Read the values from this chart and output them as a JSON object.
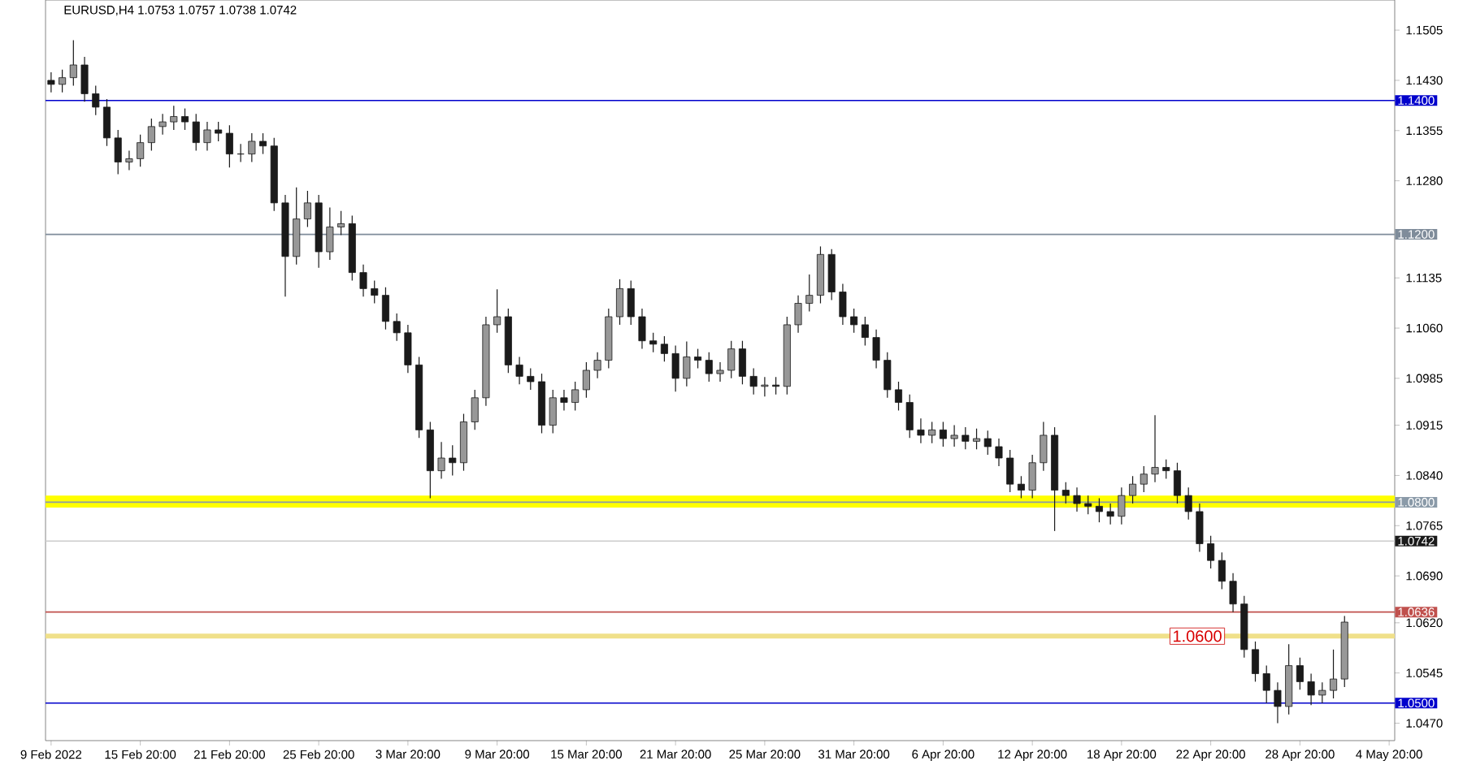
{
  "chart_data": {
    "type": "candlestick",
    "title": "EURUSD,H4  1.0753 1.0757 1.0738 1.0742",
    "color": "#1a1a1a",
    "categories": [
      "9 Feb 2022",
      null,
      null,
      null,
      null,
      null,
      null,
      null,
      "15 Feb 20:00",
      null,
      null,
      null,
      null,
      null,
      null,
      null,
      "21 Feb 20:00",
      null,
      null,
      null,
      null,
      null,
      null,
      null,
      "25 Feb 20:00",
      null,
      null,
      null,
      null,
      null,
      null,
      null,
      "3 Mar 20:00",
      null,
      null,
      null,
      null,
      null,
      null,
      null,
      "9 Mar 20:00",
      null,
      null,
      null,
      null,
      null,
      null,
      null,
      "15 Mar 20:00",
      null,
      null,
      null,
      null,
      null,
      null,
      null,
      "21 Mar 20:00",
      null,
      null,
      null,
      null,
      null,
      null,
      null,
      "25 Mar 20:00",
      null,
      null,
      null,
      null,
      null,
      null,
      null,
      "31 Mar 20:00",
      null,
      null,
      null,
      null,
      null,
      null,
      null,
      "6 Apr 20:00",
      null,
      null,
      null,
      null,
      null,
      null,
      null,
      "12 Apr 20:00",
      null,
      null,
      null,
      null,
      null,
      null,
      null,
      "18 Apr 20:00",
      null,
      null,
      null,
      null,
      null,
      null,
      null,
      "22 Apr 20:00",
      null,
      null,
      null,
      null,
      null,
      null,
      null,
      "28 Apr 20:00",
      null,
      null,
      null,
      null,
      null,
      null,
      null,
      "4 May 20:00"
    ],
    "ohlc": [
      [
        1.143,
        1.1442,
        1.1412,
        1.1424
      ],
      [
        1.1424,
        1.1446,
        1.1412,
        1.1434
      ],
      [
        1.1434,
        1.149,
        1.1422,
        1.1453
      ],
      [
        1.1453,
        1.1465,
        1.1398,
        1.141
      ],
      [
        1.141,
        1.1422,
        1.1378,
        1.139
      ],
      [
        1.139,
        1.1402,
        1.1332,
        1.1344
      ],
      [
        1.1344,
        1.1356,
        1.129,
        1.1308
      ],
      [
        1.1308,
        1.1325,
        1.1296,
        1.1313
      ],
      [
        1.1313,
        1.1349,
        1.1301,
        1.1337
      ],
      [
        1.1337,
        1.1373,
        1.1325,
        1.1361
      ],
      [
        1.1361,
        1.138,
        1.1349,
        1.1368
      ],
      [
        1.1368,
        1.1392,
        1.1356,
        1.1376
      ],
      [
        1.1376,
        1.1388,
        1.1356,
        1.1368
      ],
      [
        1.1368,
        1.138,
        1.1325,
        1.1337
      ],
      [
        1.1337,
        1.1368,
        1.1325,
        1.1356
      ],
      [
        1.1356,
        1.1368,
        1.1339,
        1.1351
      ],
      [
        1.1351,
        1.1363,
        1.13,
        1.132
      ],
      [
        1.132,
        1.1335,
        1.1308,
        1.132
      ],
      [
        1.132,
        1.1351,
        1.1308,
        1.1339
      ],
      [
        1.1339,
        1.1351,
        1.132,
        1.1332
      ],
      [
        1.1332,
        1.1344,
        1.1235,
        1.1247
      ],
      [
        1.1247,
        1.1259,
        1.1107,
        1.1167
      ],
      [
        1.1167,
        1.127,
        1.1155,
        1.1223
      ],
      [
        1.1223,
        1.1265,
        1.1211,
        1.1247
      ],
      [
        1.1247,
        1.1259,
        1.115,
        1.1174
      ],
      [
        1.1174,
        1.124,
        1.1162,
        1.1211
      ],
      [
        1.1211,
        1.1235,
        1.1199,
        1.1216
      ],
      [
        1.1216,
        1.1228,
        1.1131,
        1.1143
      ],
      [
        1.1143,
        1.1155,
        1.1107,
        1.1119
      ],
      [
        1.1119,
        1.1131,
        1.1097,
        1.1109
      ],
      [
        1.1109,
        1.1121,
        1.1058,
        1.107
      ],
      [
        1.107,
        1.1082,
        1.1041,
        1.1053
      ],
      [
        1.1053,
        1.1065,
        1.0993,
        1.1005
      ],
      [
        1.1005,
        1.1017,
        1.0896,
        1.0908
      ],
      [
        1.0908,
        1.092,
        1.0806,
        1.0847
      ],
      [
        1.0847,
        1.089,
        1.0835,
        1.0866
      ],
      [
        1.0866,
        1.0885,
        1.084,
        1.0859
      ],
      [
        1.0859,
        1.0932,
        1.0847,
        1.092
      ],
      [
        1.092,
        1.0968,
        1.0908,
        1.0956
      ],
      [
        1.0956,
        1.1077,
        1.0944,
        1.1065
      ],
      [
        1.1065,
        1.1118,
        1.1053,
        1.1077
      ],
      [
        1.1077,
        1.1089,
        1.0993,
        1.1005
      ],
      [
        1.1005,
        1.1017,
        1.0976,
        1.0988
      ],
      [
        1.0988,
        1.1,
        1.0968,
        1.098
      ],
      [
        1.098,
        1.0992,
        1.0903,
        1.0915
      ],
      [
        1.0915,
        1.0968,
        1.0903,
        1.0956
      ],
      [
        1.0956,
        1.0968,
        1.0937,
        1.0949
      ],
      [
        1.0949,
        1.098,
        1.0937,
        1.0968
      ],
      [
        1.0968,
        1.1009,
        1.0956,
        1.0997
      ],
      [
        1.0997,
        1.1024,
        1.0985,
        1.1012
      ],
      [
        1.1012,
        1.1089,
        1.1,
        1.1077
      ],
      [
        1.1077,
        1.1133,
        1.1065,
        1.1119
      ],
      [
        1.1119,
        1.1131,
        1.1065,
        1.1077
      ],
      [
        1.1077,
        1.1089,
        1.1029,
        1.1041
      ],
      [
        1.1041,
        1.1053,
        1.1024,
        1.1036
      ],
      [
        1.1036,
        1.1048,
        1.101,
        1.1022
      ],
      [
        1.1022,
        1.1034,
        1.0965,
        1.0985
      ],
      [
        1.0985,
        1.104,
        1.0973,
        1.1017
      ],
      [
        1.1017,
        1.1029,
        1.1,
        1.1012
      ],
      [
        1.1012,
        1.1024,
        1.098,
        1.0992
      ],
      [
        1.0992,
        1.1009,
        1.098,
        1.0997
      ],
      [
        1.0997,
        1.1041,
        1.0985,
        1.1029
      ],
      [
        1.1029,
        1.1041,
        1.0976,
        1.0988
      ],
      [
        1.0988,
        1.1,
        1.0961,
        1.0973
      ],
      [
        1.0973,
        1.0987,
        1.0958,
        1.0975
      ],
      [
        1.0975,
        1.0987,
        1.0961,
        1.0973
      ],
      [
        1.0973,
        1.1077,
        1.0961,
        1.1065
      ],
      [
        1.1065,
        1.1109,
        1.1053,
        1.1097
      ],
      [
        1.1097,
        1.114,
        1.1085,
        1.1109
      ],
      [
        1.1109,
        1.1182,
        1.1097,
        1.117
      ],
      [
        1.117,
        1.1178,
        1.1102,
        1.1114
      ],
      [
        1.1114,
        1.1126,
        1.1065,
        1.1077
      ],
      [
        1.1077,
        1.1089,
        1.1053,
        1.1065
      ],
      [
        1.1065,
        1.1077,
        1.1034,
        1.1046
      ],
      [
        1.1046,
        1.1058,
        1.1,
        1.1012
      ],
      [
        1.1012,
        1.1024,
        1.0956,
        1.0968
      ],
      [
        1.0968,
        1.098,
        1.0937,
        1.0949
      ],
      [
        1.0949,
        1.0961,
        1.0896,
        1.0908
      ],
      [
        1.0908,
        1.0925,
        1.0888,
        1.09
      ],
      [
        1.09,
        1.092,
        1.0888,
        1.0908
      ],
      [
        1.0908,
        1.092,
        1.0883,
        1.0895
      ],
      [
        1.0895,
        1.0915,
        1.0883,
        1.09
      ],
      [
        1.09,
        1.0912,
        1.0879,
        1.0891
      ],
      [
        1.0891,
        1.091,
        1.0879,
        1.0895
      ],
      [
        1.0895,
        1.0907,
        1.0871,
        1.0883
      ],
      [
        1.0883,
        1.0895,
        1.0854,
        1.0866
      ],
      [
        1.0866,
        1.0878,
        1.0815,
        1.0827
      ],
      [
        1.0827,
        1.0839,
        1.0806,
        1.0818
      ],
      [
        1.0818,
        1.0871,
        1.0806,
        1.0859
      ],
      [
        1.0859,
        1.092,
        1.0847,
        1.09
      ],
      [
        1.09,
        1.0912,
        1.0757,
        1.0818
      ],
      [
        1.0818,
        1.083,
        1.0798,
        1.081
      ],
      [
        1.081,
        1.0822,
        1.0786,
        1.0798
      ],
      [
        1.0798,
        1.081,
        1.0782,
        1.0794
      ],
      [
        1.0794,
        1.0806,
        1.077,
        1.0786
      ],
      [
        1.0786,
        1.0798,
        1.0767,
        1.0779
      ],
      [
        1.0779,
        1.0822,
        1.0767,
        1.081
      ],
      [
        1.081,
        1.0839,
        1.0798,
        1.0827
      ],
      [
        1.0827,
        1.0854,
        1.0815,
        1.0842
      ],
      [
        1.0842,
        1.093,
        1.083,
        1.0852
      ],
      [
        1.0852,
        1.0864,
        1.0835,
        1.0847
      ],
      [
        1.0847,
        1.0859,
        1.0798,
        1.081
      ],
      [
        1.081,
        1.0822,
        1.0774,
        1.0786
      ],
      [
        1.0786,
        1.0798,
        1.0726,
        1.0738
      ],
      [
        1.0738,
        1.075,
        1.0701,
        1.0713
      ],
      [
        1.0713,
        1.0725,
        1.067,
        1.0682
      ],
      [
        1.0682,
        1.0694,
        1.0636,
        1.0648
      ],
      [
        1.0648,
        1.066,
        1.0568,
        1.058
      ],
      [
        1.058,
        1.0592,
        1.0532,
        1.0544
      ],
      [
        1.0544,
        1.0556,
        1.05,
        1.0519
      ],
      [
        1.0519,
        1.0531,
        1.047,
        1.0495
      ],
      [
        1.0495,
        1.0588,
        1.0483,
        1.0556
      ],
      [
        1.0556,
        1.0568,
        1.052,
        1.0532
      ],
      [
        1.0532,
        1.0544,
        1.0497,
        1.0512
      ],
      [
        1.0512,
        1.0531,
        1.05,
        1.0519
      ],
      [
        1.0519,
        1.058,
        1.0507,
        1.0536
      ],
      [
        1.0536,
        1.063,
        1.0524,
        1.0621
      ],
      null,
      null,
      null,
      null
    ],
    "ylim": [
      1.0444,
      1.155
    ],
    "yticks": [
      1.1505,
      {
        "value": 1.143,
        "label": "1.1430"
      },
      1.1355,
      {
        "value": 1.128,
        "label": "1.1280"
      },
      1.1135,
      {
        "value": 1.106,
        "label": "1.1060"
      },
      1.0985,
      1.0915,
      {
        "value": 1.084,
        "label": "1.0840"
      },
      1.0765,
      {
        "value": 1.069,
        "label": "1.0690"
      },
      {
        "value": 1.062,
        "label": "1.0620"
      },
      1.0545,
      {
        "value": 1.047,
        "label": "1.0470"
      }
    ],
    "bands": [
      {
        "axis": "y",
        "from": 1.0792,
        "to": 1.081,
        "color": "#ffff00"
      }
    ],
    "ref_lines": [
      {
        "axis": "y",
        "value": 1.14,
        "label": "1.1400",
        "color": "#0000cc"
      },
      {
        "axis": "y",
        "value": 1.12,
        "label": "1.1200",
        "color": "#7f8c9a"
      },
      {
        "axis": "y",
        "value": 1.08,
        "label": "1.0800",
        "color": "#8a9aa8"
      },
      {
        "axis": "y",
        "value": 1.0742,
        "label": "1.0742",
        "color": "#cccccc"
      },
      {
        "axis": "y",
        "value": 1.0636,
        "label": "1.0636",
        "color": "#c0504d"
      },
      {
        "axis": "y",
        "value": 1.06,
        "color": "#f0e08a"
      },
      {
        "axis": "y",
        "value": 1.05,
        "label": "1.0500",
        "color": "#0000cc"
      }
    ],
    "annotations": [
      {
        "text": "1.0600",
        "y": 1.06
      }
    ]
  }
}
